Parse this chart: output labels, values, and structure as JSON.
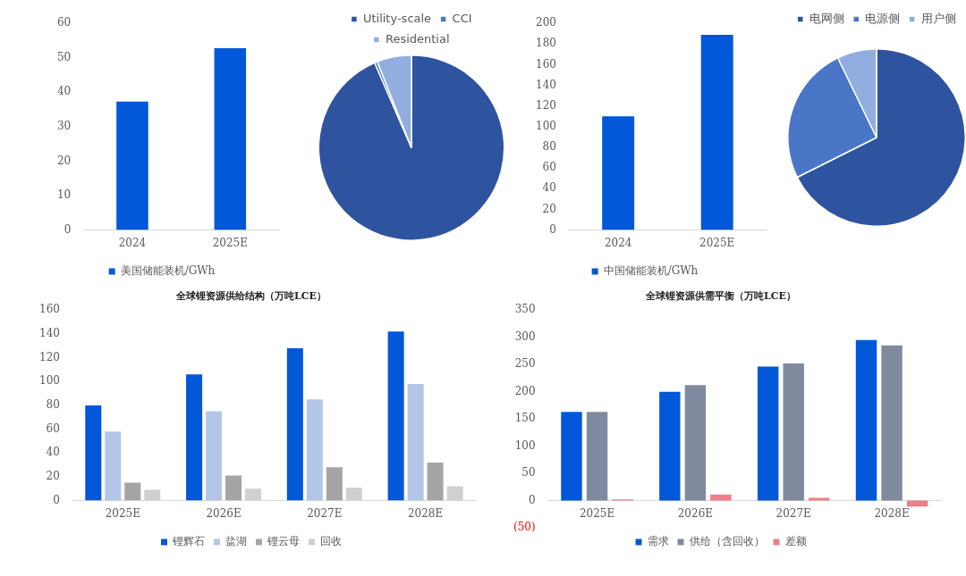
{
  "chart_data": [
    {
      "type": "bar",
      "categories": [
        "2024",
        "2025E"
      ],
      "series": [
        {
          "name": "美国储能装机/GWh",
          "color": "#0057d8",
          "values": [
            37.3,
            52.8
          ]
        }
      ],
      "ylim": [
        0,
        60
      ],
      "yticks": [
        0,
        10,
        20,
        30,
        40,
        50,
        60
      ],
      "grid": false,
      "legend": "bottom"
    },
    {
      "type": "pie",
      "categories": [
        "Utility-scale",
        "CCI",
        "Residential"
      ],
      "values": [
        93.5,
        0.5,
        6.0
      ],
      "colors": [
        "#2e54a0",
        "#4a76c8",
        "#92aee0"
      ],
      "legend": "top"
    },
    {
      "type": "bar",
      "categories": [
        "2024",
        "2025E"
      ],
      "series": [
        {
          "name": "中国储能装机/GWh",
          "color": "#0057d8",
          "values": [
            110,
            189
          ]
        }
      ],
      "ylim": [
        0,
        200
      ],
      "yticks": [
        0,
        20,
        40,
        60,
        80,
        100,
        120,
        140,
        160,
        180,
        200
      ],
      "grid": false,
      "legend": "bottom"
    },
    {
      "type": "pie",
      "categories": [
        "电网侧",
        "电源侧",
        "用户侧"
      ],
      "values": [
        67.6,
        25.2,
        7.2
      ],
      "colors": [
        "#2e54a0",
        "#4a76c8",
        "#92aee0"
      ],
      "legend": "top"
    },
    {
      "type": "bar",
      "title": "全球锂资源供给结构（万吨LCE）",
      "categories": [
        "2025E",
        "2026E",
        "2027E",
        "2028E"
      ],
      "series": [
        {
          "name": "锂辉石",
          "color": "#0057d8",
          "values": [
            80,
            106,
            128,
            142
          ]
        },
        {
          "name": "盐湖",
          "color": "#b4c6e7",
          "values": [
            58,
            75,
            85,
            98
          ]
        },
        {
          "name": "锂云母",
          "color": "#a5a5a5",
          "values": [
            15,
            21,
            28,
            32
          ]
        },
        {
          "name": "回收",
          "color": "#d0d0d0",
          "values": [
            9,
            10,
            11,
            12
          ]
        }
      ],
      "ylim": [
        0,
        160
      ],
      "yticks": [
        0,
        20,
        40,
        60,
        80,
        100,
        120,
        140,
        160
      ],
      "grid": false,
      "legend": "bottom"
    },
    {
      "type": "bar",
      "title": "全球锂资源供需平衡（万吨LCE）",
      "categories": [
        "2025E",
        "2026E",
        "2027E",
        "2028E"
      ],
      "series": [
        {
          "name": "需求",
          "color": "#0057d8",
          "values": [
            163,
            200,
            246,
            295
          ]
        },
        {
          "name": "供给（含回收）",
          "color": "#808a9e",
          "values": [
            163,
            212,
            252,
            285
          ]
        },
        {
          "name": "差额",
          "color": "#ee7e87",
          "values": [
            2,
            11,
            5,
            -11
          ]
        }
      ],
      "ylim": [
        -50,
        350
      ],
      "yticks": [
        {
          "value": -50,
          "label": "(50)"
        },
        0,
        50,
        100,
        150,
        200,
        250,
        300,
        350
      ],
      "grid": false,
      "legend": "bottom"
    }
  ]
}
